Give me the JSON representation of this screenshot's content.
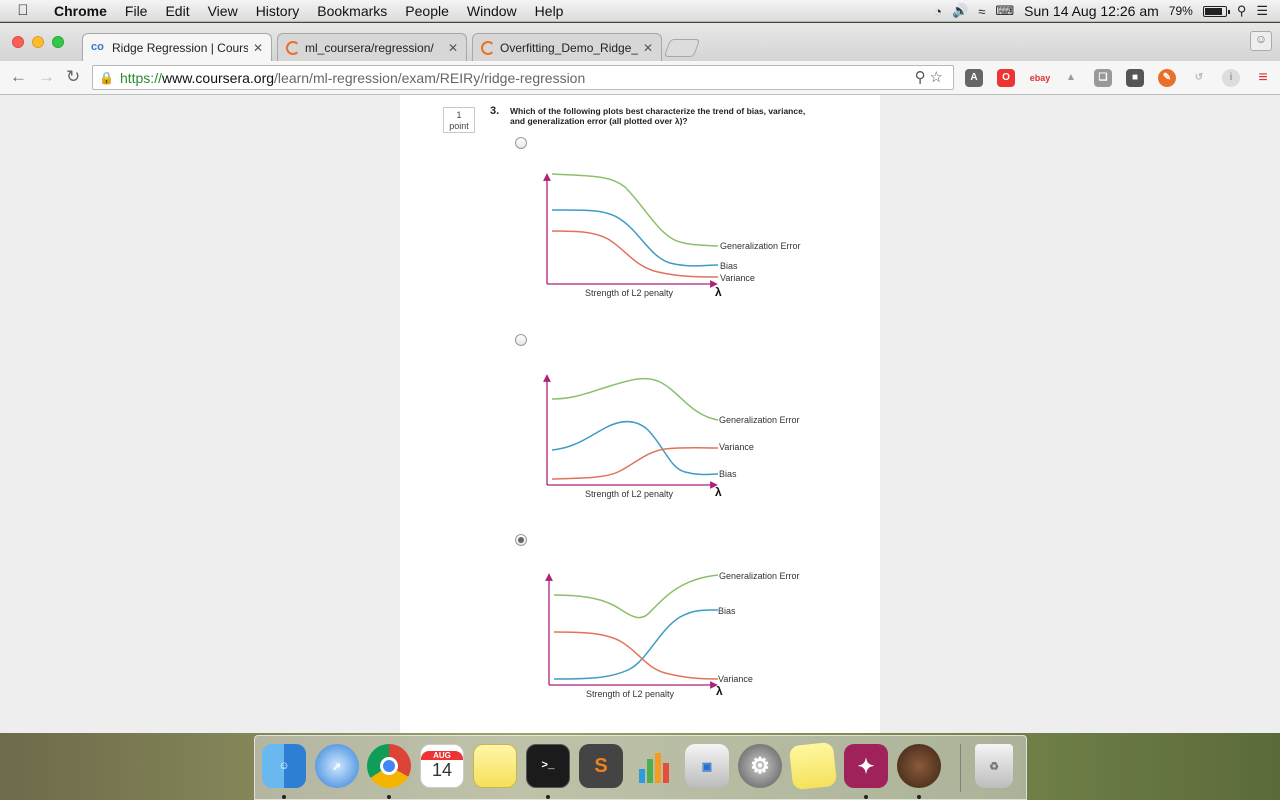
{
  "menubar": {
    "app_name": "Chrome",
    "menus": [
      "File",
      "Edit",
      "View",
      "History",
      "Bookmarks",
      "People",
      "Window",
      "Help"
    ],
    "clock": "Sun 14 Aug  12:26 am",
    "battery": "79%"
  },
  "tabs": [
    {
      "title": "Ridge Regression | Course",
      "active": true
    },
    {
      "title": "ml_coursera/regression/",
      "active": false
    },
    {
      "title": "Overfitting_Demo_Ridge_La",
      "active": false
    }
  ],
  "omnibox": {
    "scheme": "https://",
    "host": "www.coursera.org",
    "path": "/learn/ml-regression/exam/REIRy/ridge-regression"
  },
  "question": {
    "points_value": "1",
    "points_label": "point",
    "number": "3.",
    "text": "Which of the following plots best characterize the trend of bias, variance, and generalization error (all plotted over λ)?",
    "options": [
      {
        "selected": false,
        "xlabel": "Strength of L2 penalty",
        "axis_symbol": "λ",
        "series": [
          {
            "name": "Generalization Error",
            "color": "#8dbf6a"
          },
          {
            "name": "Bias",
            "color": "#3d9bc6"
          },
          {
            "name": "Variance",
            "color": "#e2735a"
          }
        ]
      },
      {
        "selected": false,
        "xlabel": "Strength of L2 penalty",
        "axis_symbol": "λ",
        "series": [
          {
            "name": "Generalization Error",
            "color": "#8dbf6a"
          },
          {
            "name": "Variance",
            "color": "#e2735a"
          },
          {
            "name": "Bias",
            "color": "#3d9bc6"
          }
        ]
      },
      {
        "selected": true,
        "xlabel": "Strength of L2 penalty",
        "axis_symbol": "λ",
        "series": [
          {
            "name": "Generalization Error",
            "color": "#8dbf6a"
          },
          {
            "name": "Bias",
            "color": "#3d9bc6"
          },
          {
            "name": "Variance",
            "color": "#e2735a"
          }
        ]
      }
    ]
  },
  "dock": {
    "calendar_month": "AUG",
    "calendar_day": "14"
  }
}
